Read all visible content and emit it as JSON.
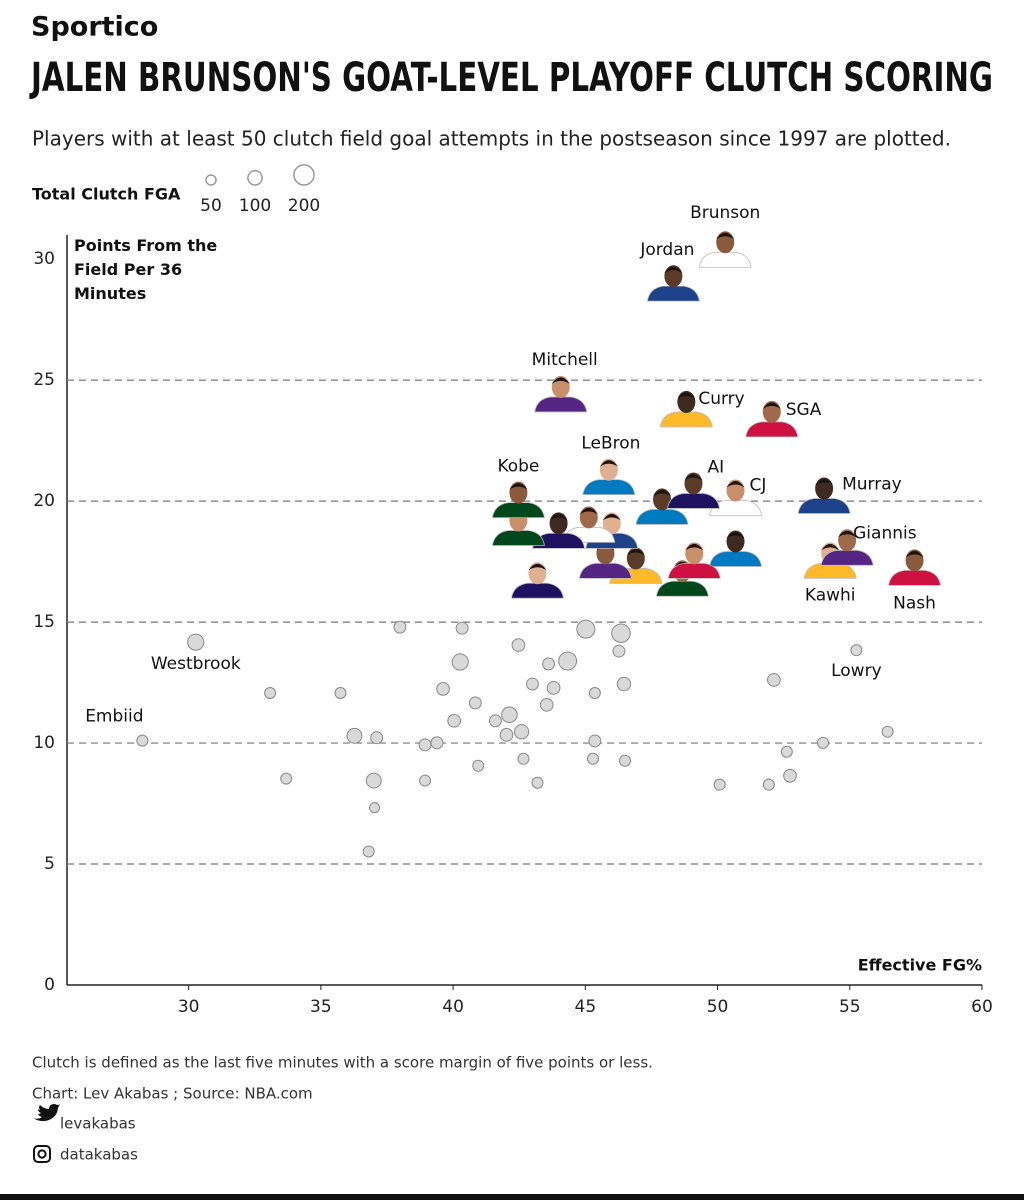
{
  "brand": "Sportico",
  "chart_data": {
    "type": "scatter",
    "title": "JALEN BRUNSON'S GOAT-LEVEL PLAYOFF CLUTCH SCORING",
    "subtitle": "Players with at least 50 clutch field goal attempts in the postseason since 1997 are plotted.",
    "size_legend": {
      "title": "Total Clutch FGA",
      "values": [
        50,
        100,
        200
      ]
    },
    "ylabel": "Points From the Field Per 36 Minutes",
    "xlabel": "Effective FG%",
    "xlim": [
      25.4,
      60
    ],
    "ylim": [
      0,
      31
    ],
    "xticks": [
      30,
      35,
      40,
      45,
      50,
      55,
      60
    ],
    "yticks": [
      0,
      5,
      10,
      15,
      20,
      25,
      30
    ],
    "grid": true,
    "series": [
      {
        "color": "#d9d9d9",
        "x": [
          28.25,
          30.27,
          33.08,
          33.69,
          35.74,
          36.27,
          37.11,
          37.0,
          37.03,
          36.81,
          37.99,
          38.94,
          38.94,
          39.39,
          39.62,
          40.04,
          40.27,
          40.34,
          40.84,
          40.95,
          41.6,
          42.02,
          42.13,
          42.47,
          42.59,
          42.66,
          43.0,
          43.19,
          43.54,
          43.61,
          43.8,
          44.33,
          45.02,
          45.29,
          45.36,
          45.36,
          46.27,
          46.35,
          46.46,
          46.5,
          50.08,
          51.94,
          52.13,
          52.62,
          52.74,
          53.99,
          55.25,
          56.43
        ],
        "values": [
          10.1,
          14.17,
          12.07,
          8.53,
          12.07,
          10.3,
          10.22,
          8.45,
          7.33,
          5.52,
          14.79,
          9.93,
          8.45,
          10.01,
          12.24,
          10.92,
          13.35,
          14.75,
          11.66,
          9.06,
          10.92,
          10.34,
          11.17,
          14.05,
          10.47,
          9.35,
          12.44,
          8.36,
          11.58,
          13.27,
          12.28,
          13.39,
          14.71,
          9.35,
          10.09,
          12.07,
          13.8,
          14.54,
          12.44,
          9.27,
          8.28,
          8.28,
          12.61,
          9.64,
          8.65,
          10.01,
          13.84,
          10.47
        ],
        "sizes": [
          60,
          130,
          60,
          60,
          60,
          110,
          70,
          110,
          50,
          60,
          70,
          70,
          60,
          70,
          80,
          80,
          130,
          70,
          70,
          60,
          70,
          80,
          120,
          80,
          100,
          60,
          70,
          60,
          80,
          70,
          80,
          160,
          160,
          60,
          70,
          60,
          70,
          170,
          90,
          60,
          60,
          60,
          80,
          60,
          80,
          60,
          60,
          60
        ],
        "labels": [
          "Embiid",
          "Westbrook",
          null,
          null,
          null,
          null,
          null,
          null,
          null,
          null,
          null,
          null,
          null,
          null,
          null,
          null,
          null,
          null,
          null,
          null,
          null,
          null,
          null,
          null,
          null,
          null,
          null,
          null,
          null,
          null,
          null,
          null,
          null,
          null,
          null,
          null,
          null,
          null,
          null,
          null,
          null,
          null,
          null,
          null,
          null,
          null,
          "Lowry",
          null
        ]
      },
      {
        "color": "#6a4a3a",
        "x": [
          50.29,
          48.33,
          44.07,
          48.82,
          52.05,
          45.89,
          42.47,
          49.09,
          50.68,
          54.03,
          54.9,
          54.26,
          57.45,
          47.9,
          42.47,
          43.99,
          45.13,
          46.0,
          45.76,
          46.91,
          49.12,
          50.68,
          48.67,
          43.19
        ],
        "values": [
          30.37,
          28.97,
          24.39,
          23.77,
          23.36,
          20.97,
          20.02,
          20.4,
          20.11,
          20.19,
          18.05,
          17.51,
          17.22,
          19.74,
          18.87,
          18.75,
          19.0,
          18.75,
          17.51,
          17.3,
          17.51,
          18.0,
          16.77,
          16.69
        ],
        "labels": [
          "Brunson",
          "Jordan",
          "Mitchell",
          "Curry",
          "SGA",
          "LeBron",
          "Kobe",
          "AI",
          "CJ",
          "Murray",
          "Giannis",
          "Kawhi",
          "Nash",
          null,
          null,
          null,
          null,
          null,
          null,
          null,
          null,
          null,
          null,
          null
        ]
      }
    ]
  },
  "footer": {
    "notes": [
      "Clutch is defined as the last five minutes with a score margin of five points or less.",
      "Chart: Lev Akabas ; Source: NBA.com"
    ],
    "twitter": "levakabas",
    "instagram": "datakabas"
  }
}
